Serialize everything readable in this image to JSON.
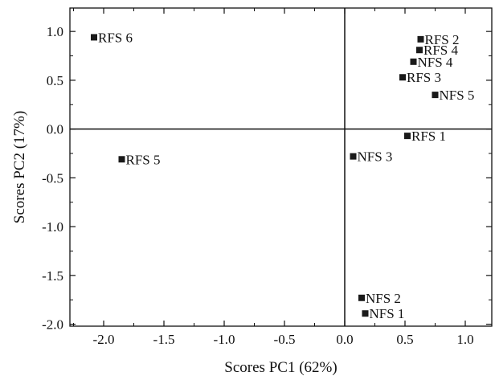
{
  "chart_data": {
    "type": "scatter",
    "xlabel": "Scores PC1 (62%)",
    "ylabel": "Scores PC2 (17%)",
    "xlim": [
      -2.28,
      1.22
    ],
    "ylim": [
      -2.02,
      1.24
    ],
    "xticks": [
      -2.0,
      -1.5,
      -1.0,
      -0.5,
      0.0,
      0.5,
      1.0
    ],
    "xtick_labels": [
      "-2.0",
      "-1.5",
      "-1.0",
      "-0.5",
      "0.0",
      "0.5",
      "1.0"
    ],
    "yticks": [
      1.0,
      0.5,
      0.0,
      -0.5,
      -1.0,
      -1.5,
      -2.0
    ],
    "ytick_labels": [
      "1.0",
      "0.5",
      "0.0",
      "-0.5",
      "-1.0",
      "-1.5",
      "-2.0"
    ],
    "reference_lines": {
      "x": 0.0,
      "y": 0.0
    },
    "grid": false,
    "marker": "square",
    "color": "#1a1a1a",
    "points": [
      {
        "label": "RFS 6",
        "x": -2.08,
        "y": 0.94
      },
      {
        "label": "RFS 5",
        "x": -1.85,
        "y": -0.31
      },
      {
        "label": "RFS 2",
        "x": 0.63,
        "y": 0.92
      },
      {
        "label": "RFS 4",
        "x": 0.62,
        "y": 0.81
      },
      {
        "label": "NFS 4",
        "x": 0.57,
        "y": 0.69
      },
      {
        "label": "RFS 3",
        "x": 0.48,
        "y": 0.53
      },
      {
        "label": "NFS 5",
        "x": 0.75,
        "y": 0.35
      },
      {
        "label": "RFS 1",
        "x": 0.52,
        "y": -0.07
      },
      {
        "label": "NFS 3",
        "x": 0.07,
        "y": -0.28
      },
      {
        "label": "NFS 2",
        "x": 0.14,
        "y": -1.73
      },
      {
        "label": "NFS 1",
        "x": 0.17,
        "y": -1.89
      }
    ]
  }
}
